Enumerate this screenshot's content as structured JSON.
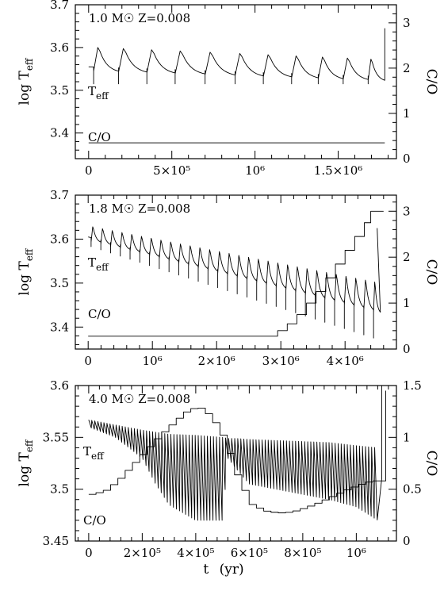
{
  "figure": {
    "xlabel_main": "t",
    "xlabel_unit": "(yr)"
  },
  "chart_data": [
    {
      "type": "line",
      "title": "1.0 M☉ Z=0.008",
      "annotation_title": "1.0 M☉ Z=0.008",
      "left_axis": {
        "label_main": "log T",
        "label_sub": "eff",
        "lim": [
          3.34,
          3.7
        ],
        "ticks": [
          3.4,
          3.5,
          3.6,
          3.7
        ]
      },
      "right_axis": {
        "label": "C/O",
        "lim": [
          0,
          3.4
        ],
        "ticks": [
          0,
          1,
          2,
          3
        ]
      },
      "x_axis": {
        "lim": [
          -80000,
          1850000
        ],
        "ticks": [
          0,
          500000,
          1000000,
          1500000
        ],
        "tick_labels": [
          "0",
          "5×10⁵",
          "10⁶",
          "1.5×10⁶"
        ]
      },
      "series": [
        {
          "name": "Teff",
          "label_main": "T",
          "label_sub": "eff",
          "axis": "left",
          "kind": "pulses",
          "t_start": 0,
          "t_end": 1780000,
          "base_start": 3.545,
          "base_end": 3.522,
          "peak_start": 3.605,
          "peak_end": 3.575,
          "dip": 3.515,
          "pulse_times": [
            30000,
            180000,
            350000,
            520000,
            700000,
            880000,
            1050000,
            1220000,
            1380000,
            1530000,
            1680000
          ],
          "final_rise": [
            1780000,
            3.645
          ]
        },
        {
          "name": "C/O",
          "label": "C/O",
          "axis": "right",
          "kind": "line",
          "x": [
            0,
            1780000
          ],
          "y": [
            0.35,
            0.35
          ]
        }
      ]
    },
    {
      "type": "line",
      "title": "1.8 M☉ Z=0.008",
      "annotation_title": "1.8 M☉ Z=0.008",
      "left_axis": {
        "label_main": "log T",
        "label_sub": "eff",
        "lim": [
          3.35,
          3.7
        ],
        "ticks": [
          3.4,
          3.5,
          3.6,
          3.7
        ]
      },
      "right_axis": {
        "label": "C/O",
        "lim": [
          0,
          3.35
        ],
        "ticks": [
          0,
          1,
          2,
          3
        ]
      },
      "x_axis": {
        "lim": [
          -200000,
          4800000
        ],
        "ticks": [
          0,
          1000000,
          2000000,
          3000000,
          4000000
        ],
        "tick_labels": [
          "0",
          "10⁶",
          "2×10⁶",
          "3×10⁶",
          "4×10⁶"
        ]
      },
      "series": [
        {
          "name": "Teff",
          "label_main": "T",
          "label_sub": "eff",
          "axis": "left",
          "kind": "pulses",
          "t_start": 0,
          "t_end": 4550000,
          "n_pulses": 30,
          "base_start": 3.595,
          "base_end": 3.43,
          "peak_start": 3.632,
          "peak_end": 3.505,
          "dip_start": 3.585,
          "dip_end": 3.37,
          "final_rise": [
            4500000,
            3.625
          ]
        },
        {
          "name": "C/O",
          "label": "C/O",
          "axis": "right",
          "kind": "step",
          "x": [
            0,
            2800000,
            2950000,
            3100000,
            3250000,
            3400000,
            3550000,
            3700000,
            3850000,
            4000000,
            4150000,
            4300000,
            4400000,
            4600000
          ],
          "y": [
            0.28,
            0.28,
            0.4,
            0.55,
            0.75,
            1.0,
            1.25,
            1.55,
            1.85,
            2.15,
            2.45,
            2.75,
            3.0,
            3.0
          ]
        }
      ]
    },
    {
      "type": "line",
      "title": "4.0 M☉ Z=0.008",
      "annotation_title": "4.0 M☉ Z=0.008",
      "left_axis": {
        "label_main": "log T",
        "label_sub": "eff",
        "lim": [
          3.45,
          3.6
        ],
        "ticks": [
          3.45,
          3.5,
          3.55,
          3.6
        ]
      },
      "right_axis": {
        "label": "C/O",
        "lim": [
          0,
          1.5
        ],
        "ticks": [
          0,
          0.5,
          1,
          1.5
        ]
      },
      "x_axis": {
        "lim": [
          -50000,
          1150000
        ],
        "ticks": [
          0,
          200000,
          400000,
          600000,
          800000,
          1000000
        ],
        "tick_labels": [
          "0",
          "2×10⁵",
          "4×10⁵",
          "6×10⁵",
          "8×10⁵",
          "10⁶"
        ]
      },
      "series": [
        {
          "name": "Teff",
          "label_main": "T",
          "label_sub": "eff",
          "axis": "left",
          "kind": "oscillation",
          "x": [
            0,
            100000,
            200000,
            250000,
            300000,
            400000,
            500000,
            520000,
            550000,
            600000,
            700000,
            800000,
            900000,
            1000000,
            1080000
          ],
          "upper": [
            3.567,
            3.562,
            3.557,
            3.555,
            3.553,
            3.552,
            3.55,
            3.549,
            3.549,
            3.548,
            3.547,
            3.546,
            3.545,
            3.542,
            3.54
          ],
          "lower": [
            3.56,
            3.55,
            3.53,
            3.505,
            3.485,
            3.47,
            3.47,
            3.53,
            3.52,
            3.505,
            3.5,
            3.495,
            3.49,
            3.483,
            3.47
          ],
          "n_cycles": 95
        },
        {
          "name": "C/O",
          "label": "C/O",
          "axis": "right",
          "kind": "stepcurve",
          "x": [
            0,
            50000,
            100000,
            150000,
            200000,
            250000,
            300000,
            350000,
            400000,
            450000,
            500000,
            550000,
            600000,
            650000,
            700000,
            750000,
            800000,
            850000,
            900000,
            950000,
            1000000,
            1050000,
            1090000,
            1110000
          ],
          "y": [
            0.45,
            0.48,
            0.58,
            0.72,
            0.86,
            1.0,
            1.12,
            1.24,
            1.3,
            1.2,
            0.98,
            0.6,
            0.35,
            0.29,
            0.27,
            0.28,
            0.32,
            0.37,
            0.43,
            0.49,
            0.54,
            0.58,
            0.58,
            1.45
          ]
        }
      ]
    }
  ]
}
